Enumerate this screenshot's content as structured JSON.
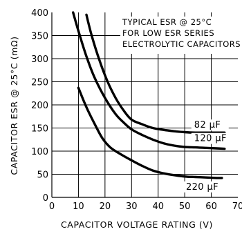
{
  "chart_data": {
    "type": "line",
    "xlabel": "CAPACITOR VOLTAGE RATING (V)",
    "ylabel": "CAPACITOR ESR @ 25°C (mΩ)",
    "xlim": [
      0,
      70
    ],
    "ylim": [
      0,
      400
    ],
    "x_ticks": [
      "0",
      "10",
      "20",
      "30",
      "40",
      "50",
      "60",
      "70"
    ],
    "y_ticks": [
      "0",
      "50",
      "100",
      "150",
      "200",
      "250",
      "300",
      "350",
      "400"
    ],
    "grid": true,
    "annotation": [
      "TYPICAL ESR @ 25°C",
      "FOR LOW ESR SERIES",
      "ELECTROLYTIC CAPACITORS"
    ],
    "series": [
      {
        "name": "82 µF",
        "x": [
          13,
          15,
          18,
          21,
          24,
          27,
          30,
          34,
          38,
          42,
          46,
          50,
          54,
          58,
          62,
          65
        ],
        "y": [
          395,
          350,
          295,
          250,
          215,
          188,
          168,
          158,
          150,
          146,
          143,
          141,
          140,
          140,
          140,
          140
        ]
      },
      {
        "name": "120 µF",
        "x": [
          8,
          10,
          13,
          16,
          20,
          24,
          27,
          30,
          34,
          38,
          42,
          46,
          50,
          54,
          58,
          62,
          65
        ],
        "y": [
          400,
          360,
          305,
          260,
          215,
          180,
          162,
          147,
          135,
          125,
          117,
          112,
          109,
          108,
          107,
          106,
          105
        ]
      },
      {
        "name": "220 µF",
        "x": [
          10,
          13,
          16,
          19,
          22,
          26,
          30,
          34,
          38,
          42,
          46,
          50,
          54,
          58,
          62,
          64
        ],
        "y": [
          237,
          195,
          160,
          128,
          108,
          93,
          80,
          68,
          58,
          52,
          48,
          45,
          44,
          43,
          42,
          42
        ]
      }
    ]
  }
}
